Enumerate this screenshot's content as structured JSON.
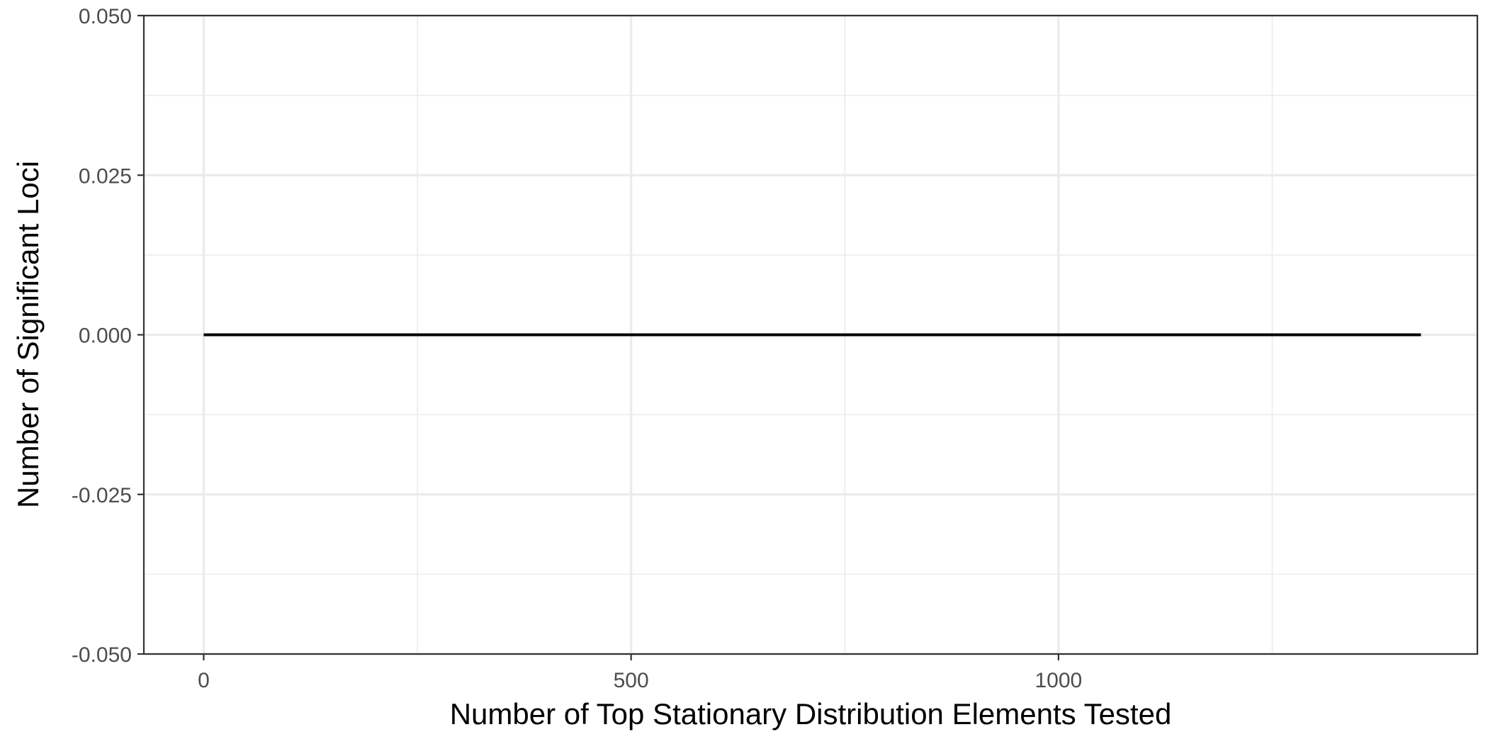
{
  "chart_data": {
    "type": "line",
    "title": "",
    "xlabel": "Number of Top Stationary Distribution Elements Tested",
    "ylabel": "Number of Significant Loci",
    "xlim": [
      -70,
      1490
    ],
    "ylim": [
      -0.05,
      0.05
    ],
    "x_ticks": [
      0,
      500,
      1000
    ],
    "x_tick_labels": [
      "0",
      "500",
      "1000"
    ],
    "x_minor_ticks": [
      250,
      750,
      1250
    ],
    "y_ticks": [
      -0.05,
      -0.025,
      0,
      0.025,
      0.05
    ],
    "y_tick_labels": [
      "-0.050",
      "-0.025",
      "0.000",
      "0.025",
      "0.050"
    ],
    "y_minor_ticks": [
      -0.0375,
      -0.0125,
      0.0125,
      0.0375
    ],
    "grid": true,
    "series": [
      {
        "color": "#000000",
        "x": [
          0,
          125,
          250,
          375,
          500,
          625,
          750,
          875,
          1000,
          1125,
          1250,
          1375,
          1424
        ],
        "y": [
          0,
          0,
          0,
          0,
          0,
          0,
          0,
          0,
          0,
          0,
          0,
          0,
          0
        ]
      }
    ]
  }
}
